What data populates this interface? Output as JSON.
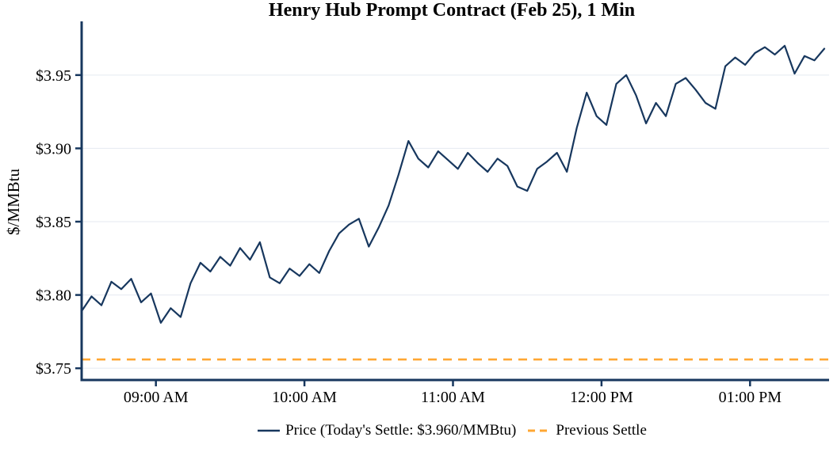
{
  "chart_data": {
    "type": "line",
    "title": "Henry Hub Prompt Contract (Feb 25), 1 Min",
    "xlabel": "",
    "ylabel": "$/MMBtu",
    "x_unit": "minutes after 08:30 AM",
    "xlim": [
      0,
      300
    ],
    "ylim": [
      3.742,
      3.985
    ],
    "xticks": [
      30,
      90,
      150,
      210,
      270
    ],
    "xtick_labels": [
      "09:00 AM",
      "10:00 AM",
      "11:00 AM",
      "12:00 PM",
      "01:00 PM"
    ],
    "yticks": [
      3.75,
      3.8,
      3.85,
      3.9,
      3.95
    ],
    "ytick_labels": [
      "$3.75",
      "$3.80",
      "$3.85",
      "$3.90",
      "$3.95"
    ],
    "grid": true,
    "legend_position": "bottom",
    "today_settle": 3.96,
    "colors": {
      "price": "#17375e",
      "previous_settle": "#ffa733",
      "axis": "#17375e",
      "grid": "#e4eaf1",
      "text": "#000000"
    },
    "series": [
      {
        "name": "Price (Today's Settle: $3.960/MMBtu)",
        "color": "#17375e",
        "style": "solid",
        "x": [
          0,
          4,
          8,
          12,
          16,
          20,
          24,
          28,
          32,
          36,
          40,
          44,
          48,
          52,
          56,
          60,
          64,
          68,
          72,
          76,
          80,
          84,
          88,
          92,
          96,
          100,
          104,
          108,
          112,
          116,
          120,
          124,
          128,
          132,
          136,
          140,
          144,
          148,
          152,
          156,
          160,
          164,
          168,
          172,
          176,
          180,
          184,
          188,
          192,
          196,
          200,
          204,
          208,
          212,
          216,
          220,
          224,
          228,
          232,
          236,
          240,
          244,
          248,
          252,
          256,
          260,
          264,
          268,
          272,
          276,
          280,
          284,
          288,
          292,
          296,
          300
        ],
        "y": [
          3.789,
          3.799,
          3.793,
          3.809,
          3.804,
          3.811,
          3.795,
          3.801,
          3.781,
          3.791,
          3.785,
          3.808,
          3.822,
          3.816,
          3.826,
          3.82,
          3.832,
          3.824,
          3.836,
          3.812,
          3.808,
          3.818,
          3.813,
          3.821,
          3.815,
          3.83,
          3.842,
          3.848,
          3.852,
          3.833,
          3.846,
          3.861,
          3.882,
          3.905,
          3.893,
          3.887,
          3.898,
          3.892,
          3.886,
          3.897,
          3.89,
          3.884,
          3.893,
          3.888,
          3.874,
          3.871,
          3.886,
          3.891,
          3.897,
          3.884,
          3.914,
          3.938,
          3.922,
          3.916,
          3.944,
          3.95,
          3.936,
          3.917,
          3.931,
          3.922,
          3.944,
          3.948,
          3.94,
          3.931,
          3.927,
          3.956,
          3.962,
          3.957,
          3.965,
          3.969,
          3.964,
          3.97,
          3.951,
          3.963,
          3.96,
          3.968
        ]
      },
      {
        "name": "Previous Settle",
        "color": "#ffa733",
        "style": "dashed",
        "value": 3.756
      }
    ]
  }
}
